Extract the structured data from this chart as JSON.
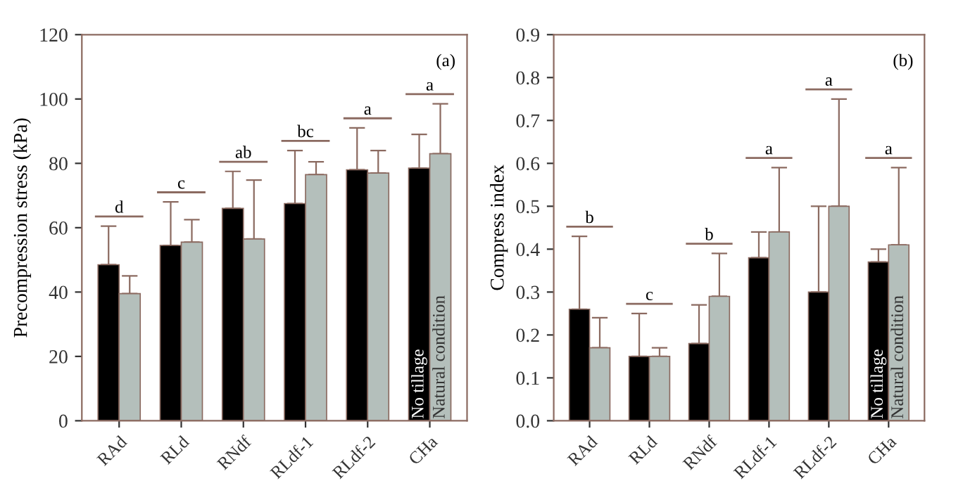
{
  "chart_data": [
    {
      "type": "bar",
      "ylabel": "Precompression stress (kPa)",
      "categories": [
        "RAd",
        "RLd",
        "RNdf",
        "RLdf-1",
        "RLdf-2",
        "CHa"
      ],
      "series": [
        {
          "name": "No tillage",
          "color": "#000000",
          "values": [
            48.5,
            54.5,
            66,
            67.5,
            78,
            78.5
          ],
          "errors": [
            [
              48.5,
              60.5
            ],
            [
              54.5,
              68
            ],
            [
              66,
              77.5
            ],
            [
              67.5,
              84
            ],
            [
              78,
              91
            ],
            [
              78.5,
              89
            ]
          ]
        },
        {
          "name": "Natural condition",
          "color": "#b4bfbb",
          "values": [
            39.5,
            55.5,
            56.5,
            76.5,
            77,
            83
          ],
          "errors": [
            [
              39.5,
              45
            ],
            [
              55.5,
              62.5
            ],
            [
              56.5,
              74.8
            ],
            [
              76.5,
              80.5
            ],
            [
              77,
              84
            ],
            [
              83,
              98.5
            ]
          ]
        }
      ],
      "ylim": [
        0,
        120
      ],
      "yticks": [
        0,
        20,
        40,
        60,
        80,
        100,
        120
      ],
      "grid": false,
      "legend": false,
      "annotations": [
        "(a)",
        "d",
        "c",
        "ab",
        "bc",
        "a",
        "a"
      ]
    },
    {
      "type": "bar",
      "ylabel": "Compress index",
      "categories": [
        "RAd",
        "RLd",
        "RNdf",
        "RLdf-1",
        "RLdf-2",
        "CHa"
      ],
      "series": [
        {
          "name": "No tillage",
          "color": "#000000",
          "values": [
            0.26,
            0.15,
            0.18,
            0.38,
            0.3,
            0.37
          ],
          "errors": [
            [
              0.26,
              0.43
            ],
            [
              0.15,
              0.25
            ],
            [
              0.18,
              0.27
            ],
            [
              0.38,
              0.44
            ],
            [
              0.3,
              0.5
            ],
            [
              0.37,
              0.4
            ]
          ]
        },
        {
          "name": "Natural condition",
          "color": "#b4bfbb",
          "values": [
            0.17,
            0.15,
            0.29,
            0.44,
            0.5,
            0.41
          ],
          "errors": [
            [
              0.17,
              0.24
            ],
            [
              0.15,
              0.17
            ],
            [
              0.29,
              0.39
            ],
            [
              0.44,
              0.59
            ],
            [
              0.5,
              0.75
            ],
            [
              0.41,
              0.59
            ]
          ]
        }
      ],
      "ylim": [
        0.0,
        0.9
      ],
      "yticks": [
        {
          "value": 0.0,
          "label": "0.0"
        },
        0.1,
        0.2,
        0.3,
        0.4,
        0.5,
        0.6,
        0.7,
        0.8,
        0.9
      ],
      "grid": false,
      "legend": false,
      "annotations": [
        "(b)",
        "b",
        "c",
        "b",
        "a",
        "a",
        "a"
      ]
    }
  ]
}
